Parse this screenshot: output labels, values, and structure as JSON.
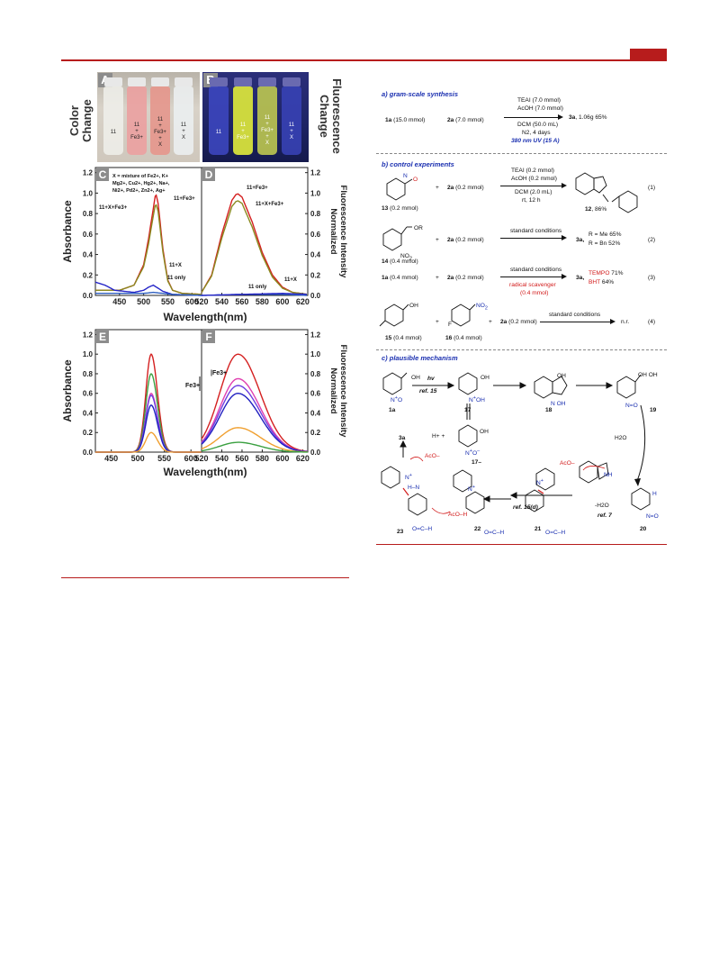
{
  "page": {
    "accent_color": "#b71c1c"
  },
  "figure_left": {
    "side_label_color": "Color\nChange",
    "side_label_fluor": "Fluorescence\nChange",
    "panel_a": "A",
    "panel_b": "B",
    "panel_c": "C",
    "panel_d": "D",
    "panel_e": "E",
    "panel_f": "F",
    "vials_a": [
      "11",
      "11\n+\nFe3+",
      "11\n+\nFe3+\n+\nX",
      "11\n+\nX"
    ],
    "vials_b": [
      "11",
      "11\n+\nFe3+",
      "11\n+\nFe3+\n+\nX",
      "11\n+\nX"
    ],
    "x_note": "X = mixture of Fe2+, K+\nMg2+, Cu2+, Hg2+, Na+,\nNi2+, Pd2+, Zn2+, Ag+",
    "label_11x_fe": "11+X+Fe3+",
    "label_11fe": "11+Fe3+",
    "label_11x": "11+X",
    "label_11only": "11 only",
    "fe_arrow_label": "Fe3+",
    "ylabel_abs": "Absorbance",
    "ylabel_fluor": "Normalized\nFluorescence Intensity",
    "xlabel": "Wavelength(nm)"
  },
  "chart_data": [
    {
      "type": "line",
      "panel": "C",
      "xlabel": "Wavelength(nm)",
      "ylabel": "Absorbance",
      "xlim": [
        400,
        620
      ],
      "ylim": [
        0,
        1.25
      ],
      "x_ticks": [
        450,
        500,
        550,
        600
      ],
      "y_ticks": [
        0.0,
        0.2,
        0.4,
        0.6,
        0.8,
        1.0,
        1.2
      ],
      "series": [
        {
          "name": "11+Fe3+",
          "color": "#d42020",
          "x": [
            400,
            450,
            480,
            500,
            510,
            520,
            525,
            530,
            540,
            550,
            560,
            580,
            620
          ],
          "y": [
            0.05,
            0.05,
            0.1,
            0.3,
            0.55,
            0.85,
            1.0,
            0.9,
            0.45,
            0.15,
            0.05,
            0.02,
            0.01
          ]
        },
        {
          "name": "11+X+Fe3+",
          "color": "#8a8a20",
          "x": [
            400,
            450,
            480,
            500,
            510,
            520,
            525,
            530,
            540,
            550,
            560,
            580,
            620
          ],
          "y": [
            0.05,
            0.05,
            0.1,
            0.28,
            0.5,
            0.78,
            0.9,
            0.82,
            0.42,
            0.14,
            0.05,
            0.02,
            0.01
          ]
        },
        {
          "name": "11+X",
          "color": "#2626c8",
          "x": [
            400,
            420,
            440,
            460,
            480,
            500,
            510,
            520,
            540,
            560,
            620
          ],
          "y": [
            0.13,
            0.1,
            0.05,
            0.04,
            0.03,
            0.05,
            0.08,
            0.1,
            0.04,
            0.01,
            0.0
          ]
        },
        {
          "name": "11 only",
          "color": "#3060c0",
          "x": [
            400,
            450,
            500,
            520,
            540,
            560,
            620
          ],
          "y": [
            0.02,
            0.02,
            0.02,
            0.03,
            0.02,
            0.01,
            0.0
          ]
        }
      ]
    },
    {
      "type": "line",
      "panel": "D",
      "xlabel": "Wavelength(nm)",
      "ylabel": "Normalized Fluorescence Intensity",
      "xlim": [
        520,
        625
      ],
      "ylim": [
        0,
        1.25
      ],
      "x_ticks": [
        520,
        540,
        560,
        580,
        600,
        620
      ],
      "y_ticks": [
        0.0,
        0.2,
        0.4,
        0.6,
        0.8,
        1.0,
        1.2
      ],
      "series": [
        {
          "name": "11+Fe3+",
          "color": "#d42020",
          "x": [
            520,
            530,
            540,
            550,
            555,
            560,
            570,
            580,
            590,
            600,
            610,
            625
          ],
          "y": [
            0.03,
            0.2,
            0.6,
            0.93,
            1.0,
            0.96,
            0.72,
            0.42,
            0.2,
            0.08,
            0.03,
            0.01
          ]
        },
        {
          "name": "11+X+Fe3+",
          "color": "#8a8a20",
          "x": [
            520,
            530,
            540,
            550,
            555,
            560,
            570,
            580,
            590,
            600,
            610,
            625
          ],
          "y": [
            0.03,
            0.19,
            0.56,
            0.87,
            0.93,
            0.9,
            0.67,
            0.39,
            0.18,
            0.07,
            0.03,
            0.01
          ]
        },
        {
          "name": "11 only",
          "color": "#3060c0",
          "x": [
            520,
            560,
            600,
            625
          ],
          "y": [
            0.0,
            0.01,
            0.01,
            0.0
          ]
        },
        {
          "name": "11+X",
          "color": "#2626c8",
          "x": [
            520,
            560,
            600,
            625
          ],
          "y": [
            0.0,
            0.01,
            0.02,
            0.01
          ]
        }
      ]
    },
    {
      "type": "line",
      "panel": "E",
      "xlabel": "Wavelength(nm)",
      "ylabel": "Absorbance",
      "xlim": [
        420,
        620
      ],
      "ylim": [
        0,
        1.25
      ],
      "x_ticks": [
        450,
        500,
        550,
        600
      ],
      "y_ticks": [
        0.0,
        0.2,
        0.4,
        0.6,
        0.8,
        1.0,
        1.2
      ],
      "peak_x": 525,
      "peaks": [
        {
          "color": "#d42020",
          "value": 1.0
        },
        {
          "color": "#3aa040",
          "value": 0.8
        },
        {
          "color": "#e040b0",
          "value": 0.6
        },
        {
          "color": "#7040e0",
          "value": 0.58
        },
        {
          "color": "#2020c0",
          "value": 0.48
        },
        {
          "color": "#f0a030",
          "value": 0.2
        }
      ]
    },
    {
      "type": "line",
      "panel": "F",
      "xlabel": "Wavelength(nm)",
      "ylabel": "Normalized Fluorescence Intensity",
      "xlim": [
        520,
        625
      ],
      "ylim": [
        0,
        1.25
      ],
      "x_ticks": [
        520,
        540,
        560,
        580,
        600,
        620
      ],
      "y_ticks": [
        0.0,
        0.2,
        0.4,
        0.6,
        0.8,
        1.0,
        1.2
      ],
      "peak_x": 556,
      "peaks": [
        {
          "color": "#d42020",
          "value": 1.0
        },
        {
          "color": "#e040b0",
          "value": 0.75
        },
        {
          "color": "#7040e0",
          "value": 0.68
        },
        {
          "color": "#2020c0",
          "value": 0.6
        },
        {
          "color": "#f0a030",
          "value": 0.25
        },
        {
          "color": "#3aa040",
          "value": 0.1
        }
      ]
    }
  ],
  "scheme": {
    "a_title": "a) gram-scale synthesis",
    "a_1a": "1a",
    "a_1a_amt": " (15.0 mmol)",
    "a_2a": "2a",
    "a_2a_amt": " (7.0 mmol)",
    "a_cond1": "TEAI (7.0 mmol)",
    "a_cond2": "AcOH (7.0 mmol)",
    "a_cond3": "DCM (50.0 mL)",
    "a_cond4": "N2, 4 days",
    "a_cond5": "380 nm UV (15 A)",
    "a_prod": "3a",
    "a_prod_yield": ", 1.06g 65%",
    "b_title": "b) control experiments",
    "e1_plus": "+",
    "e1_2a": "2a",
    "e1_2a_amt": " (0.2 mmol)",
    "e1_cond1": "TEAI (0.2 mmol)",
    "e1_cond2": "AcOH (0.2 mmol)",
    "e1_cond3": "DCM (2.0 mL)",
    "e1_cond4": "rt, 12 h",
    "e1_sm": "13",
    "e1_sm_amt": " (0.2 mmol)",
    "e1_prod": "12",
    "e1_prod_yield": ", 86%",
    "e1_num": "(1)",
    "e2_plus": "+",
    "e2_2a": "2a",
    "e2_2a_amt": " (0.2 mmol)",
    "e2_cond": "standard conditions",
    "e2_prod": "3a,",
    "e2_r1": "R = Me 65%",
    "e2_r2": "R = Bn 52%",
    "e2_sm": "14",
    "e2_sm_amt": " (0.4 mmol)",
    "e2_num": "(2)",
    "e3_1a": "1a",
    "e3_1a_amt": " (0.4 mmol)",
    "e3_plus": "+",
    "e3_2a": "2a",
    "e3_2a_amt": " (0.2 mmol)",
    "e3_cond1": "standard conditions",
    "e3_cond2": "radical scavenger",
    "e3_cond3": "(0.4 mmol)",
    "e3_prod": "3a,",
    "e3_tempo": "TEMPO",
    "e3_tempo_y": " 71%",
    "e3_bht": "BHT",
    "e3_bht_y": "  64%",
    "e3_num": "(3)",
    "e4_plus1": "+",
    "e4_plus2": "+",
    "e4_2a": "2a",
    "e4_2a_amt": " (0.2 mmol)",
    "e4_cond": "standard conditions",
    "e4_prod": "n.r.",
    "e4_15": "15",
    "e4_15_amt": " (0.4 mmol)",
    "e4_16": "16",
    "e4_16_amt": " (0.4 mmol)",
    "e4_num": "(4)",
    "c_title": "c) plausible mechanism",
    "m_hv": "hv",
    "m_ref15": "ref. 15",
    "m_1a": "1a",
    "m_17": "17",
    "m_18": "18",
    "m_19": "19",
    "m_17minus": "17–",
    "m_h_plus": "H+ +",
    "m_h2o": "H2O",
    "m_3a": "3a",
    "m_aco1": "AcO–",
    "m_aco2": "AcO–",
    "m_acoh": "AcO–H",
    "m_ref15d": "ref. 15(d)",
    "m_minus_h2o": "-H2O",
    "m_ref7": "ref. 7",
    "m_23": "23",
    "m_22": "22",
    "m_21": "21",
    "m_20": "20"
  }
}
